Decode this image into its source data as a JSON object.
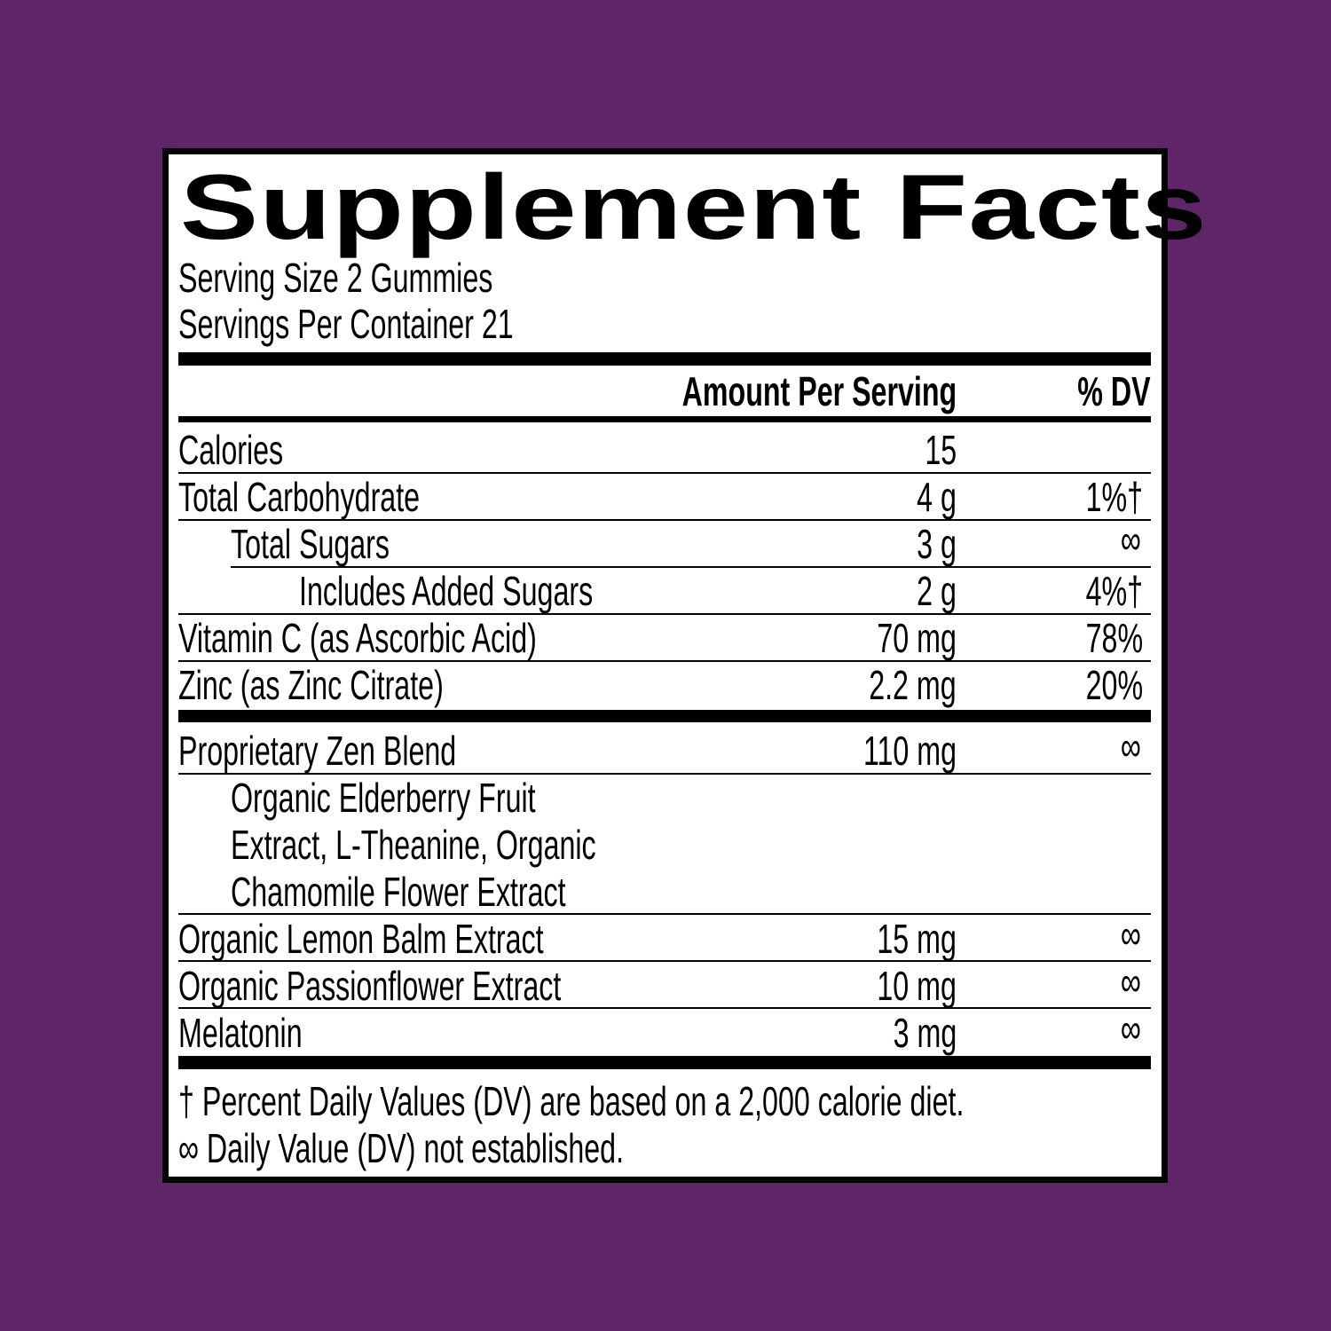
{
  "title": "Supplement Facts",
  "serving_size": "Serving Size 2 Gummies",
  "servings_per_container": "Servings Per Container 21",
  "headers": {
    "amount": "Amount Per Serving",
    "dv": "% DV"
  },
  "rows": [
    {
      "name": "Calories",
      "amount": "15",
      "dv": ""
    },
    {
      "name": "Total Carbohydrate",
      "amount": "4 g",
      "dv": "1%†"
    },
    {
      "name": "Total Sugars",
      "amount": "3 g",
      "dv": "∞"
    },
    {
      "name": "Includes Added Sugars",
      "amount": "2 g",
      "dv": "4%†"
    },
    {
      "name": "Vitamin C (as Ascorbic Acid)",
      "amount": "70 mg",
      "dv": "78%"
    },
    {
      "name": "Zinc (as Zinc Citrate)",
      "amount": "2.2 mg",
      "dv": "20%"
    }
  ],
  "blend": {
    "name": "Proprietary Zen Blend",
    "amount": "110 mg",
    "dv": "∞",
    "ingredients": [
      "Organic Elderberry Fruit",
      "Extract, L-Theanine, Organic",
      "Chamomile Flower Extract"
    ]
  },
  "other_rows": [
    {
      "name": "Organic Lemon Balm Extract",
      "amount": "15 mg",
      "dv": "∞"
    },
    {
      "name": "Organic Passionflower Extract",
      "amount": "10 mg",
      "dv": "∞"
    },
    {
      "name": "Melatonin",
      "amount": "3 mg",
      "dv": "∞"
    }
  ],
  "footnotes": [
    "† Percent Daily Values (DV) are based on a 2,000 calorie diet.",
    "∞ Daily Value (DV) not established."
  ],
  "colors": {
    "background": "#5f2667",
    "panel": "#ffffff",
    "ink": "#000000"
  }
}
